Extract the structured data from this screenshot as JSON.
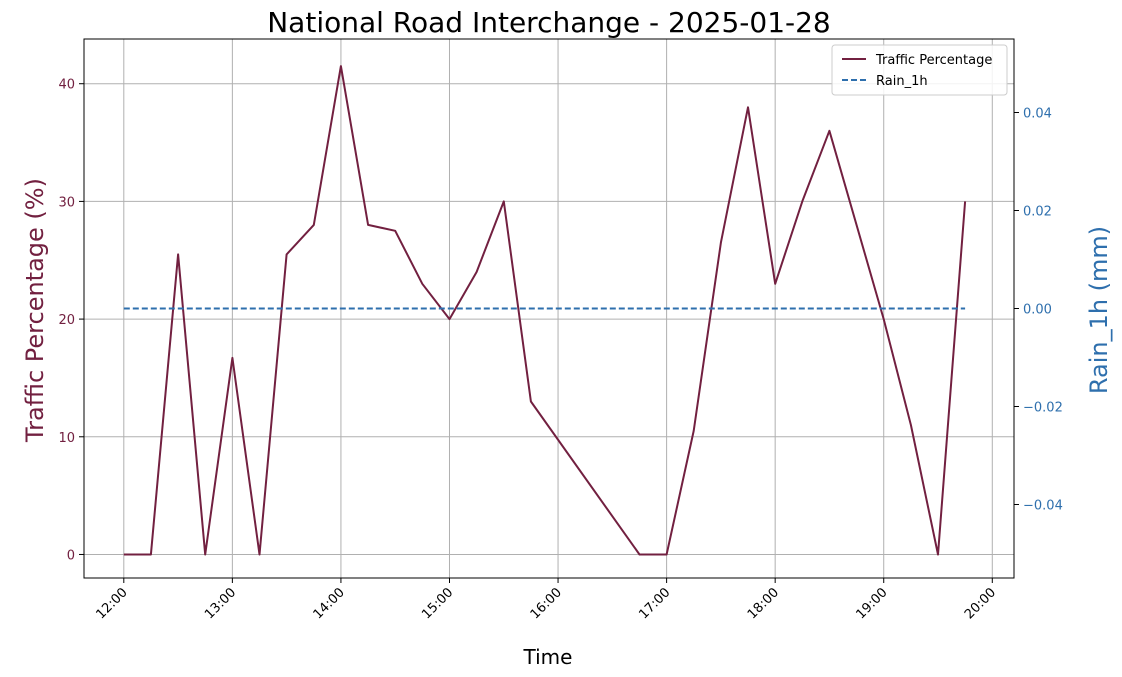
{
  "chart_data": {
    "type": "line",
    "title": "National Road Interchange - 2025-01-28",
    "xlabel": "Time",
    "ylabel": "Traffic Percentage (%)",
    "y2label": "Rain_1h (mm)",
    "x_tick_labels": [
      "12:00",
      "13:00",
      "14:00",
      "15:00",
      "16:00",
      "17:00",
      "18:00",
      "19:00",
      "20:00"
    ],
    "y_ticks": [
      0,
      10,
      20,
      30,
      40
    ],
    "y2_ticks": [
      "−0.04",
      "−0.02",
      "0.00",
      "0.02",
      "0.04"
    ],
    "y2_tick_values": [
      -0.04,
      -0.02,
      0.0,
      0.02,
      0.04
    ],
    "ylim": [
      -2,
      43.8
    ],
    "y2lim": [
      -0.055,
      0.055
    ],
    "xlim": [
      "11:38",
      "20:12"
    ],
    "grid": true,
    "legend_position": "top-right",
    "colors": {
      "traffic": "#722040",
      "rain": "#2e6fad",
      "grid": "#b0b0b0"
    },
    "series": [
      {
        "name": "Traffic Percentage",
        "axis": "left",
        "style": "solid",
        "x": [
          "12:00",
          "12:15",
          "12:30",
          "12:45",
          "13:00",
          "13:15",
          "13:30",
          "13:45",
          "14:00",
          "14:15",
          "14:30",
          "14:45",
          "15:00",
          "15:15",
          "15:30",
          "15:45",
          "16:45",
          "17:00",
          "17:15",
          "17:30",
          "17:45",
          "18:00",
          "18:15",
          "18:30",
          "19:00",
          "19:15",
          "19:30",
          "19:45"
        ],
        "values": [
          0,
          0,
          25.5,
          0,
          16.7,
          0,
          25.5,
          28,
          41.5,
          28,
          27.5,
          23,
          20,
          24,
          30,
          13,
          0,
          0,
          10.5,
          26.5,
          38,
          23,
          30,
          36,
          20,
          11,
          0,
          30
        ]
      },
      {
        "name": "Rain_1h",
        "axis": "right",
        "style": "dashed",
        "x": [
          "12:00",
          "19:45"
        ],
        "values": [
          0.0,
          0.0
        ]
      }
    ]
  }
}
